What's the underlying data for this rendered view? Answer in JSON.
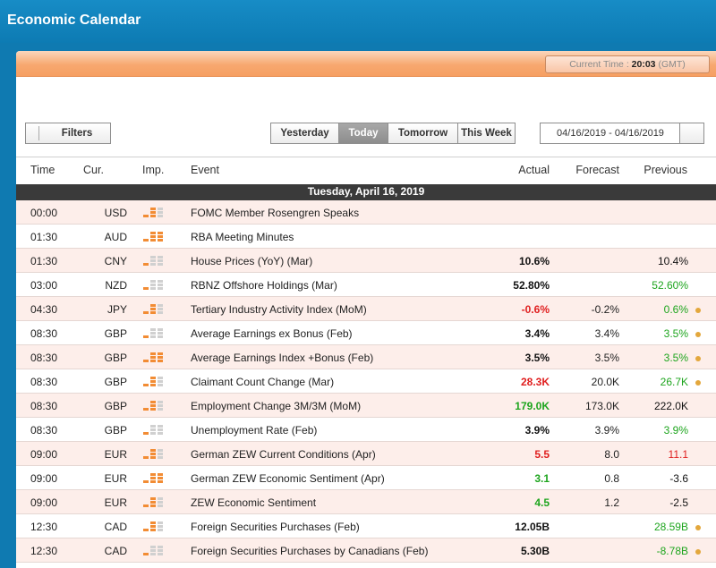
{
  "app": {
    "title": "Economic Calendar"
  },
  "header_bar": {
    "current_time_label": "Current Time :",
    "current_time_value": "20:03",
    "timezone": "(GMT)"
  },
  "toolbar": {
    "filters_label": "Filters",
    "day_tabs": [
      {
        "label": "Yesterday",
        "active": false
      },
      {
        "label": "Today",
        "active": true
      },
      {
        "label": "Tomorrow",
        "active": false
      },
      {
        "label": "This Week",
        "active": false
      }
    ],
    "date_range": "04/16/2019 - 04/16/2019"
  },
  "columns": {
    "time": "Time",
    "cur": "Cur.",
    "imp": "Imp.",
    "event": "Event",
    "actual": "Actual",
    "forecast": "Forecast",
    "previous": "Previous"
  },
  "day_header": "Tuesday, April 16, 2019",
  "colors": {
    "orange": "#f28c34",
    "gray_bar": "#d0d0d0",
    "red": "#e02020",
    "green": "#1ea51e",
    "dot": "#e3a73c"
  },
  "rows": [
    {
      "time": "00:00",
      "cur": "USD",
      "imp": 2,
      "event": "FOMC Member Rosengren Speaks",
      "actual": "",
      "actual_color": "",
      "forecast": "",
      "previous": "",
      "previous_color": "",
      "dot": false
    },
    {
      "time": "01:30",
      "cur": "AUD",
      "imp": 3,
      "event": "RBA Meeting Minutes",
      "actual": "",
      "actual_color": "",
      "forecast": "",
      "previous": "",
      "previous_color": "",
      "dot": false
    },
    {
      "time": "01:30",
      "cur": "CNY",
      "imp": 1,
      "event": "House Prices (YoY) (Mar)",
      "actual": "10.6%",
      "actual_color": "black",
      "forecast": "",
      "previous": "10.4%",
      "previous_color": "black",
      "dot": false
    },
    {
      "time": "03:00",
      "cur": "NZD",
      "imp": 1,
      "event": "RBNZ Offshore Holdings (Mar)",
      "actual": "52.80%",
      "actual_color": "black",
      "forecast": "",
      "previous": "52.60%",
      "previous_color": "green",
      "dot": false
    },
    {
      "time": "04:30",
      "cur": "JPY",
      "imp": 2,
      "event": "Tertiary Industry Activity Index (MoM)",
      "actual": "-0.6%",
      "actual_color": "red",
      "forecast": "-0.2%",
      "previous": "0.6%",
      "previous_color": "green",
      "dot": true
    },
    {
      "time": "08:30",
      "cur": "GBP",
      "imp": 1,
      "event": "Average Earnings ex Bonus (Feb)",
      "actual": "3.4%",
      "actual_color": "black",
      "forecast": "3.4%",
      "previous": "3.5%",
      "previous_color": "green",
      "dot": true
    },
    {
      "time": "08:30",
      "cur": "GBP",
      "imp": 3,
      "event": "Average Earnings Index +Bonus (Feb)",
      "actual": "3.5%",
      "actual_color": "black",
      "forecast": "3.5%",
      "previous": "3.5%",
      "previous_color": "green",
      "dot": true
    },
    {
      "time": "08:30",
      "cur": "GBP",
      "imp": 2,
      "event": "Claimant Count Change (Mar)",
      "actual": "28.3K",
      "actual_color": "red",
      "forecast": "20.0K",
      "previous": "26.7K",
      "previous_color": "green",
      "dot": true
    },
    {
      "time": "08:30",
      "cur": "GBP",
      "imp": 2,
      "event": "Employment Change 3M/3M (MoM)",
      "actual": "179.0K",
      "actual_color": "green",
      "forecast": "173.0K",
      "previous": "222.0K",
      "previous_color": "black",
      "dot": false
    },
    {
      "time": "08:30",
      "cur": "GBP",
      "imp": 1,
      "event": "Unemployment Rate (Feb)",
      "actual": "3.9%",
      "actual_color": "black",
      "forecast": "3.9%",
      "previous": "3.9%",
      "previous_color": "green",
      "dot": false
    },
    {
      "time": "09:00",
      "cur": "EUR",
      "imp": 2,
      "event": "German ZEW Current Conditions (Apr)",
      "actual": "5.5",
      "actual_color": "red",
      "forecast": "8.0",
      "previous": "11.1",
      "previous_color": "red",
      "dot": false
    },
    {
      "time": "09:00",
      "cur": "EUR",
      "imp": 3,
      "event": "German ZEW Economic Sentiment (Apr)",
      "actual": "3.1",
      "actual_color": "green",
      "forecast": "0.8",
      "previous": "-3.6",
      "previous_color": "black",
      "dot": false
    },
    {
      "time": "09:00",
      "cur": "EUR",
      "imp": 2,
      "event": "ZEW Economic Sentiment",
      "actual": "4.5",
      "actual_color": "green",
      "forecast": "1.2",
      "previous": "-2.5",
      "previous_color": "black",
      "dot": false
    },
    {
      "time": "12:30",
      "cur": "CAD",
      "imp": 2,
      "event": "Foreign Securities Purchases (Feb)",
      "actual": "12.05B",
      "actual_color": "black",
      "forecast": "",
      "previous": "28.59B",
      "previous_color": "green",
      "dot": true
    },
    {
      "time": "12:30",
      "cur": "CAD",
      "imp": 1,
      "event": "Foreign Securities Purchases by Canadians (Feb)",
      "actual": "5.30B",
      "actual_color": "black",
      "forecast": "",
      "previous": "-8.78B",
      "previous_color": "green",
      "dot": true
    }
  ]
}
